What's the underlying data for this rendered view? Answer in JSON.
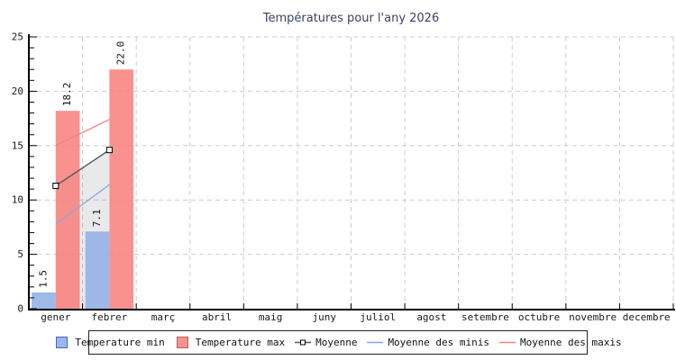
{
  "title": "Températures pour l'any 2026",
  "chart_data": {
    "type": "bar",
    "categories": [
      "gener",
      "febrer",
      "març",
      "abril",
      "maig",
      "juny",
      "juliol",
      "agost",
      "setembre",
      "octubre",
      "novembre",
      "decembre"
    ],
    "ylim": [
      0,
      25
    ],
    "y_ticks": [
      0,
      5,
      10,
      15,
      20,
      25
    ],
    "grid": "dashed",
    "legend_position": "bottom",
    "series": [
      {
        "name": "Temperature min",
        "type": "bar",
        "color": "#95b1e5",
        "opacity": 0.9,
        "values": [
          1.5,
          7.1
        ]
      },
      {
        "name": "Temperature max",
        "type": "bar",
        "color": "#f87f7b",
        "opacity": 0.85,
        "values": [
          18.2,
          22.0
        ]
      },
      {
        "name": "Moyenne",
        "type": "line",
        "color": "#555555",
        "marker": "square",
        "area_fill": "rgba(0,0,25,0.085)",
        "values": [
          11.3,
          14.6
        ]
      },
      {
        "name": "Moyenne des minis",
        "type": "line",
        "color": "#8ca6de",
        "values": [
          7.8,
          11.4
        ]
      },
      {
        "name": "Moyenne des maxis",
        "type": "line",
        "color": "#f2837f",
        "values": [
          15.0,
          17.4
        ]
      }
    ],
    "bar_value_labels": [
      "1.5",
      "7.1",
      "18.2",
      "22.0"
    ]
  },
  "colors": {
    "grid": "#cccccc",
    "axis": "#000000",
    "tick_label": "#1a1a1a",
    "title": "#3c4164",
    "bar_min": "#9db6e8",
    "bar_max": "#f9918e"
  },
  "legend": {
    "items": [
      {
        "label": "Temperature min",
        "swatch": "box",
        "color": "#9db6e8",
        "border": "#4a66b8"
      },
      {
        "label": "Temperature max",
        "swatch": "box",
        "color": "#f9918e",
        "border": "#c05a57"
      },
      {
        "label": "Moyenne",
        "swatch": "marker-line",
        "color": "#555555",
        "border": "#000000"
      },
      {
        "label": "Moyenne des minis",
        "swatch": "line",
        "color": "#8ca6de",
        "border": "#8ca6de"
      },
      {
        "label": "Moyenne des maxis",
        "swatch": "line",
        "color": "#f2837f",
        "border": "#f2837f"
      }
    ]
  }
}
